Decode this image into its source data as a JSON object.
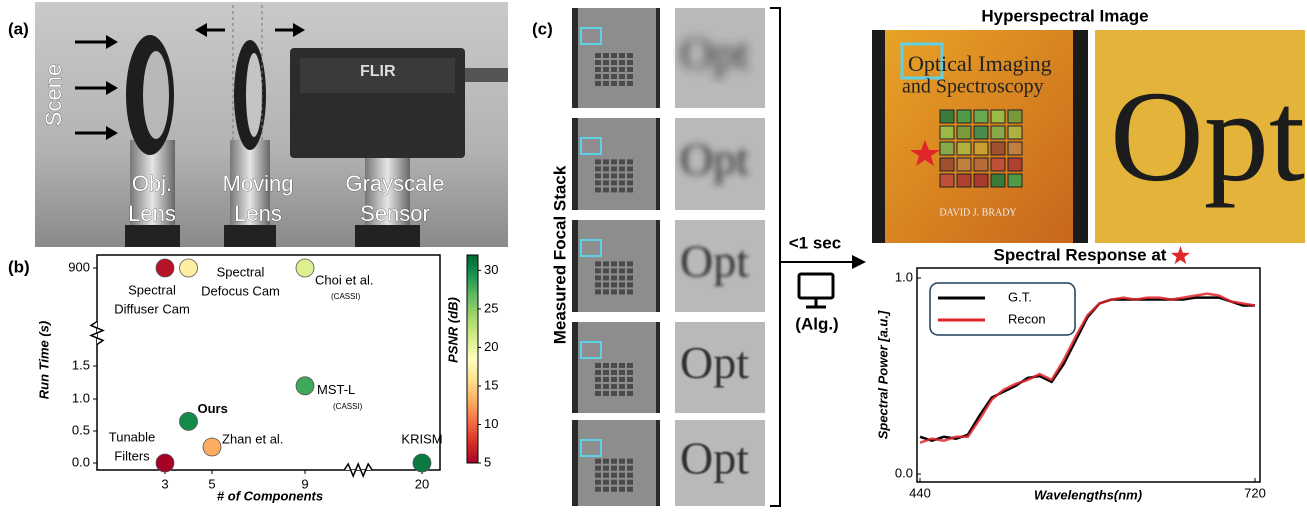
{
  "panel_labels": [
    "(a)",
    "(b)",
    "(c)"
  ],
  "setup": {
    "scene": "Scene",
    "components": [
      [
        "Obj.",
        "Lens"
      ],
      [
        "Moving",
        "Lens"
      ],
      [
        "Grayscale",
        "Sensor"
      ]
    ],
    "camera_brand": "FLIR"
  },
  "focal_stack": {
    "label": "Measured Focal Stack",
    "crop_text": "Opt"
  },
  "algorithm": {
    "time": "<1 sec",
    "label": "(Alg.)"
  },
  "hyperspectral": {
    "title": "Hyperspectral Image",
    "book_title": [
      "Optical Imaging",
      "and Spectroscopy"
    ],
    "author": "DAVID J. BRADY",
    "crop_text": "Opt"
  },
  "chart_data": [
    {
      "type": "scatter",
      "x_label": "# of Components",
      "y_label": "Run Time (s)",
      "xlim": [
        0.1,
        21.5
      ],
      "xticks": [
        3,
        5,
        9,
        20
      ],
      "ylim": [
        -0.1,
        1000
      ],
      "yticks": [
        {
          "value": 0,
          "label": "0.0"
        },
        {
          "value": 0.5,
          "label": "0.5"
        },
        {
          "value": 1,
          "label": "1.0"
        },
        1.5,
        900
      ],
      "colorbar": {
        "label": "PSNR (dB)",
        "colormap": "RdYlGn",
        "clim": [
          5,
          32
        ],
        "ticks": [
          5,
          10,
          15,
          20,
          25,
          30
        ]
      },
      "points": [
        {
          "label": [
            "Spectral",
            "Diffuser Cam"
          ],
          "x": 3,
          "y": 900,
          "psnr": 6
        },
        {
          "label": [
            "Spectral",
            "Defocus Cam"
          ],
          "x": 4,
          "y": 900,
          "psnr": 17
        },
        {
          "label": [
            "Choi et al.",
            "(CASSI)"
          ],
          "x": 9,
          "y": 900,
          "psnr": 21
        },
        {
          "label": [
            "MST-L",
            "(CASSI)"
          ],
          "x": 9,
          "y": 1.2,
          "psnr": 28
        },
        {
          "label": [
            "Ours"
          ],
          "x": 4,
          "y": 0.65,
          "psnr": 30
        },
        {
          "label": [
            "Zhan et al."
          ],
          "x": 5,
          "y": 0.25,
          "psnr": 13
        },
        {
          "label": [
            "Tunable",
            "Filters"
          ],
          "x": 3,
          "y": 0,
          "psnr": 5
        },
        {
          "label": [
            "KRISM"
          ],
          "x": 20,
          "y": 0,
          "psnr": 31
        }
      ]
    },
    {
      "type": "line",
      "title": "Spectral Response at",
      "x_label": "Wavelengths(nm)",
      "y_label": "Spectral Power [a.u.]",
      "xlim": [
        440,
        720
      ],
      "xticks": [
        440,
        720
      ],
      "ylim": [
        0,
        1
      ],
      "yticks": [
        {
          "value": 0,
          "label": "0.0"
        },
        {
          "value": 1,
          "label": "1.0"
        }
      ],
      "legend": "upper left",
      "x": [
        440,
        450,
        460,
        470,
        480,
        490,
        500,
        510,
        520,
        530,
        540,
        550,
        560,
        570,
        580,
        590,
        600,
        610,
        620,
        630,
        640,
        650,
        660,
        670,
        680,
        690,
        700,
        710,
        720
      ],
      "series": [
        {
          "name": "G.T.",
          "color": "#000000",
          "values": [
            0.19,
            0.17,
            0.19,
            0.18,
            0.2,
            0.3,
            0.39,
            0.42,
            0.45,
            0.49,
            0.5,
            0.47,
            0.56,
            0.68,
            0.8,
            0.87,
            0.89,
            0.89,
            0.89,
            0.89,
            0.89,
            0.89,
            0.89,
            0.9,
            0.9,
            0.9,
            0.88,
            0.86,
            0.86
          ]
        },
        {
          "name": "Recon",
          "color": "#e0262b",
          "values": [
            0.16,
            0.18,
            0.17,
            0.19,
            0.19,
            0.28,
            0.38,
            0.43,
            0.46,
            0.48,
            0.51,
            0.48,
            0.58,
            0.7,
            0.81,
            0.87,
            0.89,
            0.9,
            0.89,
            0.9,
            0.9,
            0.89,
            0.9,
            0.91,
            0.92,
            0.91,
            0.88,
            0.87,
            0.86
          ]
        }
      ]
    }
  ]
}
